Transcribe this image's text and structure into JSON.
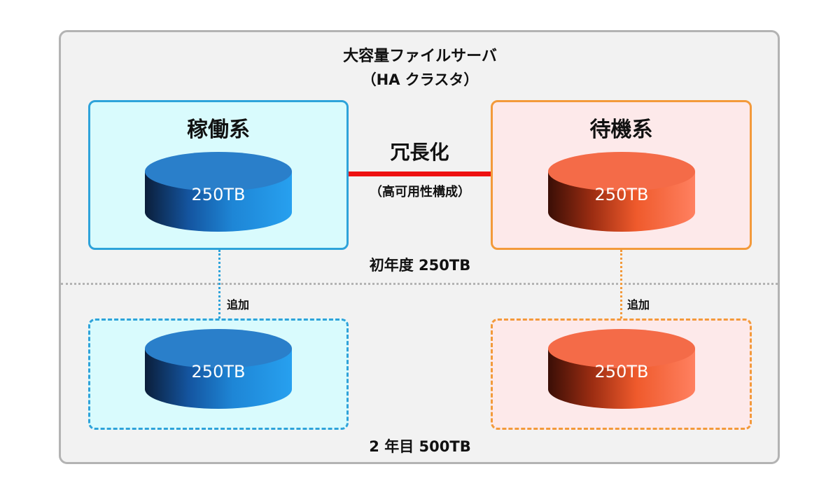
{
  "diagram": {
    "title": "大容量ファイルサーバ",
    "subtitle": "（HA クラスタ）",
    "active_system": {
      "label": "稼働系",
      "color": "#2ea3da",
      "initial_storage": "250TB",
      "added_storage": "250TB"
    },
    "standby_system": {
      "label": "待機系",
      "color": "#f39a3b",
      "initial_storage": "250TB",
      "added_storage": "250TB"
    },
    "link": {
      "label": "冗長化",
      "note": "（高可用性構成）",
      "color": "#ee1111"
    },
    "add_label_left": "追加",
    "add_label_right": "追加",
    "year1_label": "初年度 250TB",
    "year2_label": "2 年目 500TB"
  }
}
